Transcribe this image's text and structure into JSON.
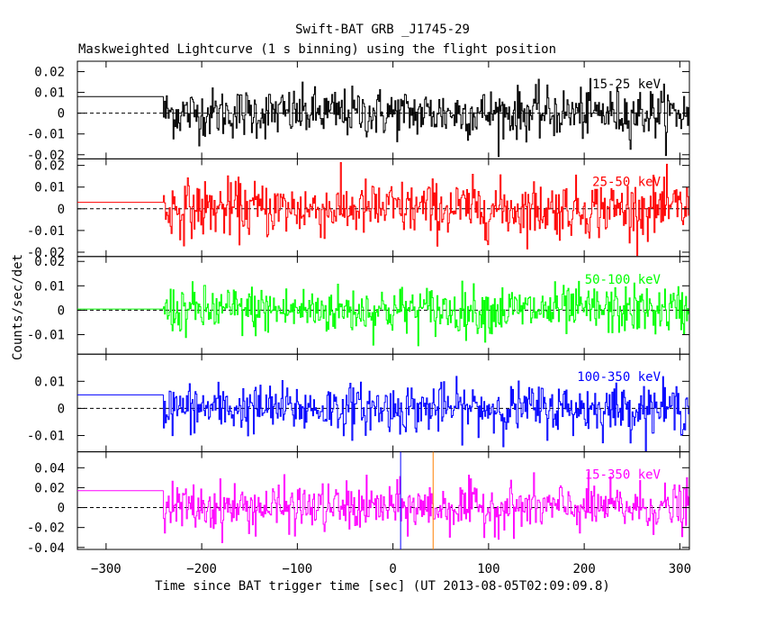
{
  "chart_data": {
    "type": "line",
    "title": "Swift-BAT GRB _J1745-29",
    "subtitle": "Maskweighted Lightcurve (1 s binning) using the flight position",
    "xlabel": "Time since BAT trigger time [sec] (UT 2013-08-05T02:09:09.8)",
    "ylabel": "Counts/sec/det",
    "xlim": [
      -330,
      310
    ],
    "x_ticks": [
      -300,
      -200,
      -100,
      0,
      100,
      200,
      300
    ],
    "data_start": -240,
    "pre_start_level": "horizontal line before data starts",
    "vertical_markers": [
      {
        "x": 8,
        "color": "#0000ff",
        "panel": 4
      },
      {
        "x": 42,
        "color": "#ff7f00",
        "panel": 4
      }
    ],
    "panels": [
      {
        "band": "15-25 keV",
        "color": "#000000",
        "ylim": [
          -0.022,
          0.025
        ],
        "yticks": [
          -0.02,
          -0.01,
          0,
          0.01,
          0.02
        ],
        "ytick_labels": [
          "-0.02",
          "-0.01",
          "0",
          "0.01",
          "0.02"
        ],
        "pre_level": 0.008,
        "noise_sigma": 0.006
      },
      {
        "band": "25-50 keV",
        "color": "#ff0000",
        "ylim": [
          -0.022,
          0.023
        ],
        "yticks": [
          -0.02,
          -0.01,
          0,
          0.01,
          0.02
        ],
        "ytick_labels": [
          "-0.02",
          "-0.01",
          "0",
          "0.01",
          "0.02"
        ],
        "pre_level": 0.003,
        "noise_sigma": 0.0065
      },
      {
        "band": "50-100 keV",
        "color": "#00ff00",
        "ylim": [
          -0.018,
          0.022
        ],
        "yticks": [
          -0.01,
          0,
          0.01,
          0.02
        ],
        "ytick_labels": [
          "-0.01",
          "0",
          "0.01",
          "0.02"
        ],
        "pre_level": 0.0005,
        "noise_sigma": 0.005
      },
      {
        "band": "100-350 keV",
        "color": "#0000ff",
        "ylim": [
          -0.016,
          0.02
        ],
        "yticks": [
          -0.01,
          0,
          0.01
        ],
        "ytick_labels": [
          "-0.01",
          "0",
          "0.01"
        ],
        "pre_level": 0.005,
        "noise_sigma": 0.0045
      },
      {
        "band": "15-350 keV",
        "color": "#ff00ff",
        "ylim": [
          -0.042,
          0.056
        ],
        "yticks": [
          -0.04,
          -0.02,
          0,
          0.02,
          0.04
        ],
        "ytick_labels": [
          "-0.04",
          "-0.02",
          "0",
          "0.02",
          "0.04"
        ],
        "pre_level": 0.017,
        "noise_sigma": 0.012
      }
    ]
  }
}
